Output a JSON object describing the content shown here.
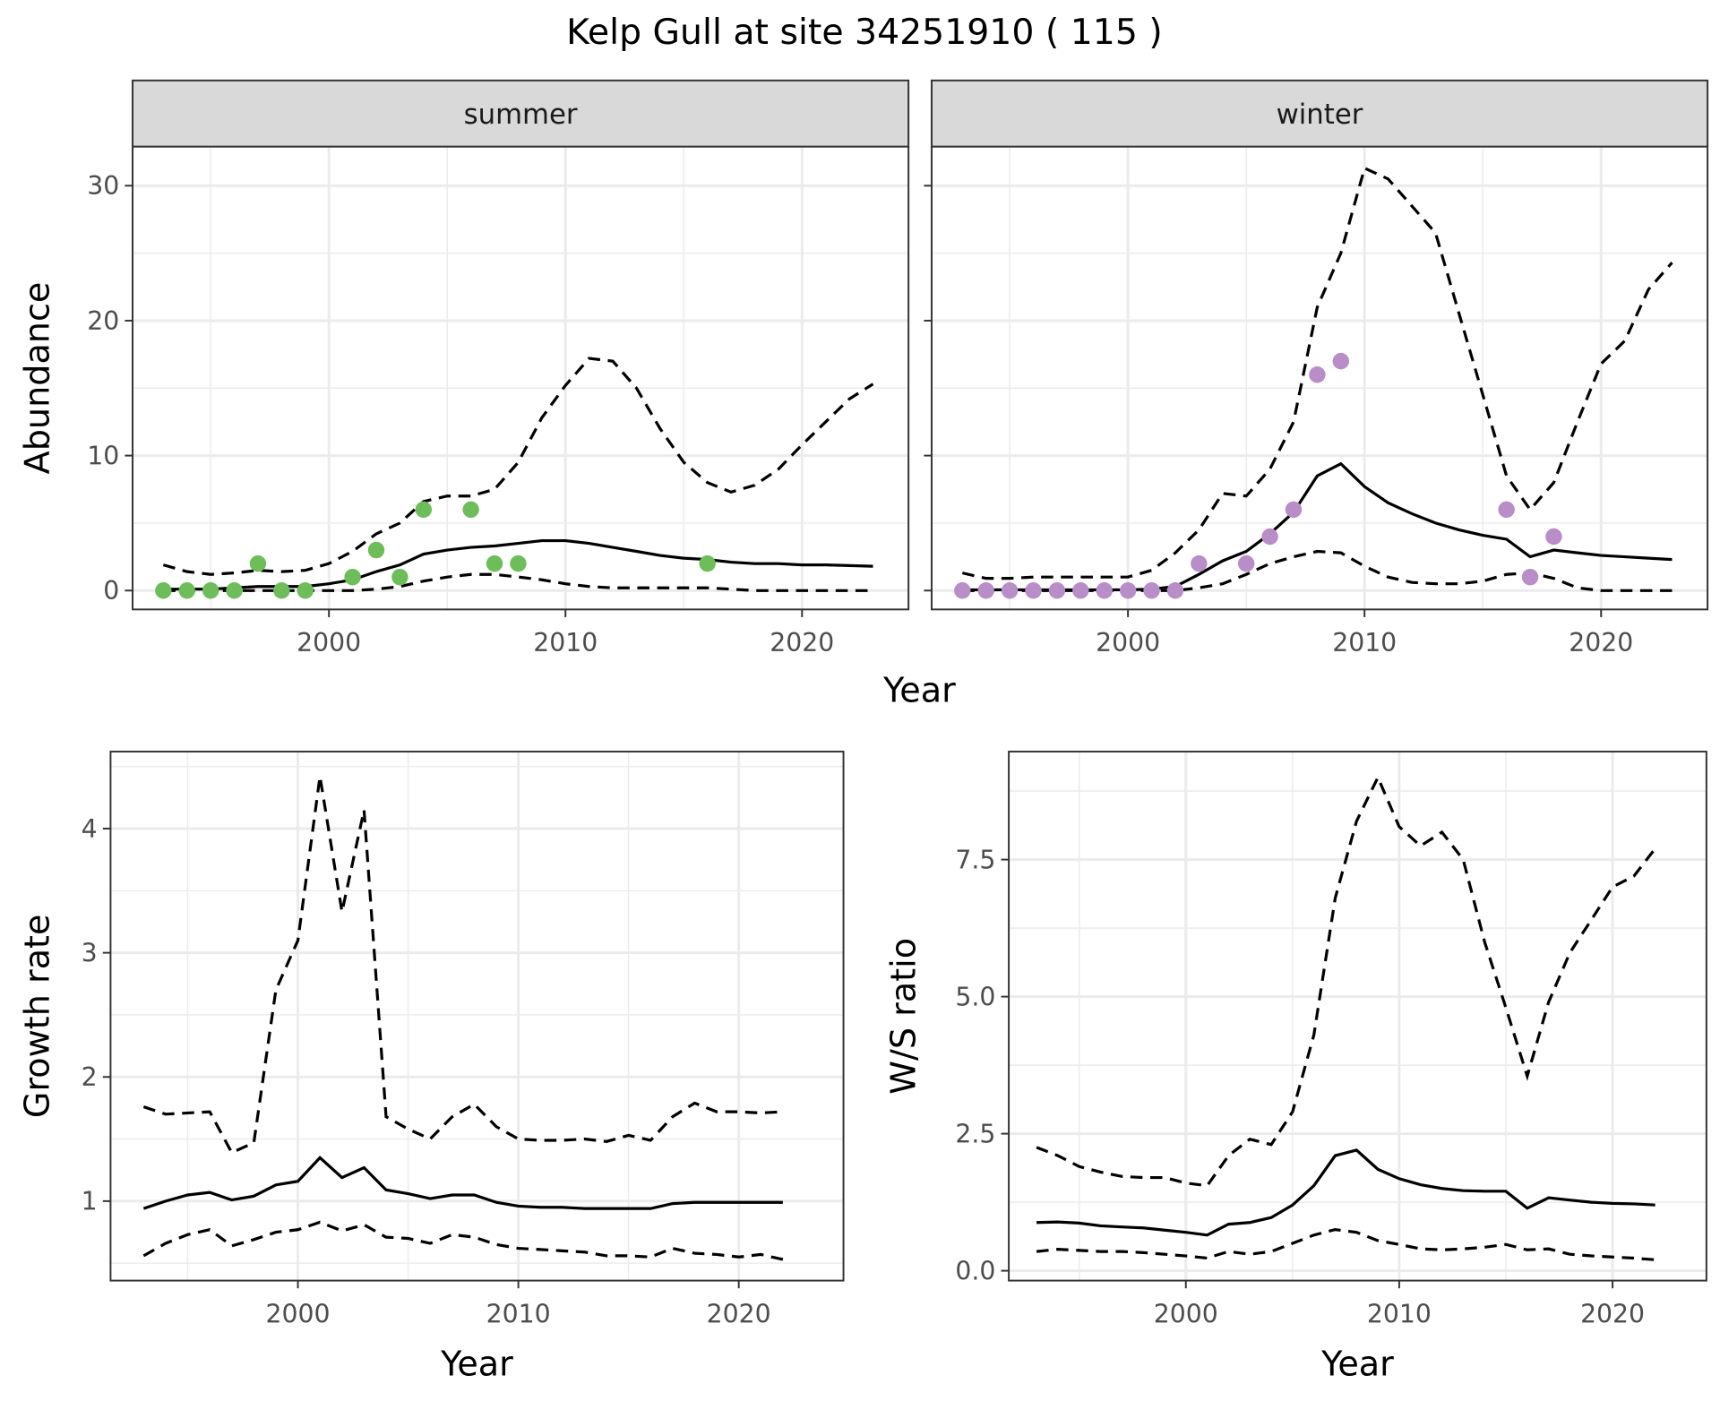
{
  "title": "Kelp Gull at site 34251910 ( 115 )",
  "colors": {
    "summer_points": "#6DBE5A",
    "winter_points": "#B88DC8",
    "line": "#000000",
    "strip": "#D9D9D9",
    "grid": "#EBEBEB"
  },
  "chart_data": [
    {
      "type": "line",
      "panel": "summer",
      "strip_label": "summer",
      "xlabel": "Year",
      "ylabel": "Abundance",
      "xlim": [
        1991.7,
        2024.5
      ],
      "ylim": [
        -1.4,
        32.9
      ],
      "xticks": [
        2000,
        2010,
        2020
      ],
      "yticks": [
        0,
        10,
        20,
        30
      ],
      "ytick_labels": [
        "0",
        "10",
        "20",
        "30"
      ],
      "grid": true,
      "x": [
        1993,
        1994,
        1995,
        1996,
        1997,
        1998,
        1999,
        2000,
        2001,
        2002,
        2003,
        2004,
        2005,
        2006,
        2007,
        2008,
        2009,
        2010,
        2011,
        2012,
        2013,
        2014,
        2015,
        2016,
        2017,
        2018,
        2019,
        2020,
        2021,
        2022,
        2023
      ],
      "mean": [
        0.1,
        0.1,
        0.1,
        0.2,
        0.3,
        0.3,
        0.3,
        0.5,
        0.8,
        1.4,
        1.9,
        2.7,
        3.0,
        3.2,
        3.3,
        3.5,
        3.7,
        3.7,
        3.5,
        3.2,
        2.9,
        2.6,
        2.4,
        2.3,
        2.1,
        2.0,
        2.0,
        1.9,
        1.9,
        1.85,
        1.8
      ],
      "upper": [
        1.9,
        1.4,
        1.2,
        1.3,
        1.5,
        1.4,
        1.5,
        2.0,
        2.9,
        4.2,
        5.0,
        6.6,
        7.0,
        7.0,
        7.5,
        9.5,
        12.8,
        15.2,
        17.2,
        17.0,
        15.0,
        12.0,
        9.5,
        8.0,
        7.3,
        7.8,
        9.0,
        10.8,
        12.5,
        14.2,
        15.3
      ],
      "lower": [
        0,
        0,
        0,
        0,
        0,
        0,
        0,
        0,
        0,
        0.1,
        0.3,
        0.7,
        1.0,
        1.2,
        1.2,
        1.0,
        0.8,
        0.5,
        0.3,
        0.2,
        0.2,
        0.2,
        0.2,
        0.2,
        0.1,
        0,
        0,
        0,
        0,
        0,
        0
      ],
      "points": {
        "x": [
          1993,
          1994,
          1995,
          1996,
          1997,
          1998,
          1999,
          2001,
          2002,
          2003,
          2004,
          2006,
          2007,
          2008,
          2016
        ],
        "y": [
          0,
          0,
          0,
          0,
          2,
          0,
          0,
          1,
          3,
          1,
          6,
          6,
          2,
          2,
          2
        ]
      }
    },
    {
      "type": "line",
      "panel": "winter",
      "strip_label": "winter",
      "xlabel": "Year",
      "ylabel": "Abundance",
      "xlim": [
        1991.7,
        2024.5
      ],
      "ylim": [
        -1.4,
        32.9
      ],
      "xticks": [
        2000,
        2010,
        2020
      ],
      "yticks": [
        0,
        10,
        20,
        30
      ],
      "grid": true,
      "x": [
        1993,
        1994,
        1995,
        1996,
        1997,
        1998,
        1999,
        2000,
        2001,
        2002,
        2003,
        2004,
        2005,
        2006,
        2007,
        2008,
        2009,
        2010,
        2011,
        2012,
        2013,
        2014,
        2015,
        2016,
        2017,
        2018,
        2019,
        2020,
        2021,
        2022,
        2023
      ],
      "mean": [
        0.05,
        0.05,
        0.05,
        0.05,
        0.05,
        0.05,
        0.05,
        0.05,
        0.1,
        0.3,
        1.2,
        2.2,
        2.9,
        4.2,
        5.8,
        8.5,
        9.4,
        7.7,
        6.5,
        5.7,
        5.0,
        4.5,
        4.1,
        3.8,
        2.5,
        3.0,
        2.8,
        2.6,
        2.5,
        2.4,
        2.3
      ],
      "upper": [
        1.3,
        0.9,
        0.9,
        1.0,
        1.0,
        1.0,
        1.0,
        1.0,
        1.5,
        2.8,
        4.5,
        7.2,
        7.0,
        9.0,
        12.5,
        21,
        25,
        31.3,
        30.5,
        28.5,
        26.5,
        20.5,
        14.5,
        8.5,
        6.0,
        8.0,
        12.5,
        16.8,
        18.5,
        22.3,
        24.3
      ],
      "lower": [
        0,
        0,
        0,
        0,
        0,
        0,
        0,
        0,
        0,
        0,
        0.2,
        0.5,
        1.2,
        2.0,
        2.5,
        2.9,
        2.8,
        1.8,
        1.0,
        0.6,
        0.5,
        0.5,
        0.7,
        1.2,
        1.3,
        0.9,
        0.2,
        0,
        0,
        0,
        0
      ],
      "points": {
        "x": [
          1993,
          1994,
          1995,
          1996,
          1997,
          1998,
          1999,
          2000,
          2001,
          2002,
          2003,
          2005,
          2006,
          2007,
          2008,
          2009,
          2016,
          2017,
          2018
        ],
        "y": [
          0,
          0,
          0,
          0,
          0,
          0,
          0,
          0,
          0,
          0,
          2,
          2,
          4,
          6,
          16,
          17,
          6,
          1,
          4
        ]
      }
    },
    {
      "type": "line",
      "panel": "growth",
      "xlabel": "Year",
      "ylabel": "Growth rate",
      "xlim": [
        1991.5,
        2024.75
      ],
      "ylim": [
        0.36,
        4.62
      ],
      "xticks": [
        2000,
        2010,
        2020
      ],
      "yticks": [
        1,
        2,
        3,
        4
      ],
      "ytick_labels": [
        "1",
        "2",
        "3",
        "4"
      ],
      "grid": true,
      "x": [
        1993,
        1994,
        1995,
        1996,
        1997,
        1998,
        1999,
        2000,
        2001,
        2002,
        2003,
        2004,
        2005,
        2006,
        2007,
        2008,
        2009,
        2010,
        2011,
        2012,
        2013,
        2014,
        2015,
        2016,
        2017,
        2018,
        2019,
        2020,
        2021,
        2022
      ],
      "mean": [
        0.94,
        1.0,
        1.05,
        1.07,
        1.01,
        1.04,
        1.13,
        1.16,
        1.35,
        1.19,
        1.27,
        1.09,
        1.06,
        1.02,
        1.05,
        1.05,
        0.99,
        0.96,
        0.95,
        0.95,
        0.94,
        0.94,
        0.94,
        0.94,
        0.98,
        0.99,
        0.99,
        0.99,
        0.99,
        0.99
      ],
      "upper": [
        1.76,
        1.7,
        1.71,
        1.72,
        1.39,
        1.47,
        2.7,
        3.1,
        4.42,
        3.33,
        4.15,
        1.68,
        1.58,
        1.5,
        1.68,
        1.78,
        1.6,
        1.5,
        1.49,
        1.49,
        1.5,
        1.48,
        1.53,
        1.49,
        1.68,
        1.79,
        1.72,
        1.72,
        1.71,
        1.72
      ],
      "lower": [
        0.56,
        0.66,
        0.73,
        0.77,
        0.64,
        0.69,
        0.75,
        0.77,
        0.83,
        0.76,
        0.81,
        0.71,
        0.7,
        0.66,
        0.73,
        0.71,
        0.65,
        0.62,
        0.61,
        0.6,
        0.59,
        0.56,
        0.56,
        0.55,
        0.62,
        0.58,
        0.57,
        0.55,
        0.57,
        0.53
      ]
    },
    {
      "type": "line",
      "panel": "ws_ratio",
      "xlabel": "Year",
      "ylabel": "W/S ratio",
      "xlim": [
        1991.7,
        2024.4
      ],
      "ylim": [
        -0.18,
        9.47
      ],
      "xticks": [
        2000,
        2010,
        2020
      ],
      "yticks": [
        0,
        2.5,
        5,
        7.5
      ],
      "ytick_labels": [
        "0.0",
        "2.5",
        "5.0",
        "7.5"
      ],
      "grid": true,
      "x": [
        1993,
        1994,
        1995,
        1996,
        1997,
        1998,
        1999,
        2000,
        2001,
        2002,
        2003,
        2004,
        2005,
        2006,
        2007,
        2008,
        2009,
        2010,
        2011,
        2012,
        2013,
        2014,
        2015,
        2016,
        2017,
        2018,
        2019,
        2020,
        2021,
        2022
      ],
      "mean": [
        0.88,
        0.89,
        0.87,
        0.82,
        0.8,
        0.78,
        0.74,
        0.7,
        0.65,
        0.85,
        0.88,
        0.97,
        1.2,
        1.55,
        2.1,
        2.2,
        1.85,
        1.68,
        1.57,
        1.5,
        1.46,
        1.45,
        1.45,
        1.14,
        1.33,
        1.29,
        1.25,
        1.23,
        1.22,
        1.2
      ],
      "upper": [
        2.25,
        2.1,
        1.9,
        1.8,
        1.72,
        1.7,
        1.7,
        1.6,
        1.55,
        2.1,
        2.4,
        2.3,
        2.9,
        4.3,
        6.8,
        8.2,
        9.0,
        8.1,
        7.75,
        8.0,
        7.5,
        6.0,
        4.8,
        3.55,
        4.9,
        5.8,
        6.4,
        7.0,
        7.2,
        7.7
      ],
      "lower": [
        0.35,
        0.39,
        0.37,
        0.35,
        0.35,
        0.33,
        0.3,
        0.27,
        0.23,
        0.35,
        0.3,
        0.35,
        0.5,
        0.65,
        0.75,
        0.7,
        0.55,
        0.48,
        0.4,
        0.38,
        0.4,
        0.43,
        0.48,
        0.38,
        0.4,
        0.3,
        0.27,
        0.25,
        0.23,
        0.2
      ]
    }
  ]
}
